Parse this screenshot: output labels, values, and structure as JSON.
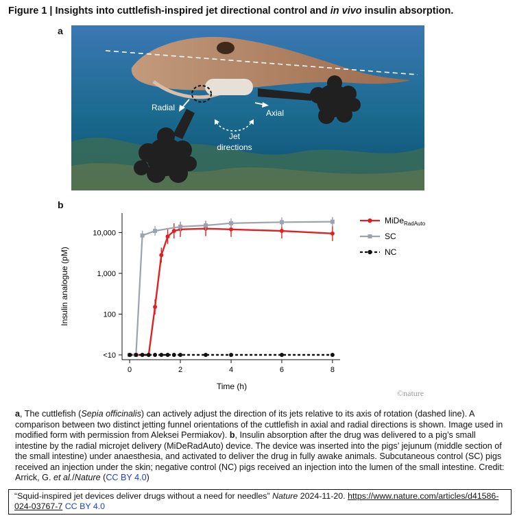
{
  "figure": {
    "title_prefix": "Figure 1 | Insights into cuttlefish-inspired jet directional control and ",
    "title_italic": "in vivo",
    "title_suffix": " insulin absorption."
  },
  "panel_a": {
    "letter": "a",
    "labels": {
      "radial": "Radial",
      "axial": "Axial",
      "jet_line1": "Jet",
      "jet_line2": "directions"
    },
    "colors": {
      "water_top": "#3c78b4",
      "water_bottom": "#0d4f73",
      "cuttlefish": "#b08468",
      "jet_cloud": "#202020"
    }
  },
  "panel_b": {
    "letter": "b",
    "watermark": "©nature"
  },
  "chart_data": {
    "type": "line",
    "xlabel": "Time (h)",
    "ylabel": "Insulin analogue (pM)",
    "x_ticks": [
      0,
      2,
      4,
      6,
      8
    ],
    "y_scale": "log",
    "y_ticks": [
      "<10",
      "100",
      "1,000",
      "10,000"
    ],
    "xlim": [
      -0.3,
      8.3
    ],
    "series": [
      {
        "name": "MiDe",
        "name_subscript": "RadAuto",
        "color": "#e02020",
        "marker": "filled-circle",
        "x": [
          0,
          0.25,
          0.5,
          0.75,
          1,
          1.25,
          1.5,
          1.75,
          2,
          3,
          4,
          6,
          8
        ],
        "y": [
          10,
          10,
          10,
          10,
          150,
          2800,
          8000,
          11000,
          12000,
          12500,
          12000,
          11000,
          9500
        ]
      },
      {
        "name": "SC",
        "color": "#9da3ad",
        "marker": "square",
        "x": [
          0,
          0.25,
          0.5,
          1,
          2,
          3,
          4,
          6,
          8
        ],
        "y": [
          10,
          10,
          8500,
          11000,
          14000,
          15000,
          17000,
          18000,
          18500
        ]
      },
      {
        "name": "NC",
        "color": "#111111",
        "marker": "filled-circle",
        "dashed": true,
        "x": [
          0,
          0.25,
          0.5,
          0.75,
          1,
          1.25,
          1.5,
          1.75,
          2,
          3,
          4,
          6,
          8
        ],
        "y": [
          10,
          10,
          10,
          10,
          10,
          10,
          10,
          10,
          10,
          10,
          10,
          10,
          10
        ]
      }
    ]
  },
  "caption": {
    "a_label": "a",
    "a1": ", The cuttlefish (",
    "a_species": "Sepia officinalis",
    "a2": ") can actively adjust the direction of its jets relative to its axis of rotation (dashed line). A comparison between two distinct jetting funnel orientations of the cuttlefish in axial and radial directions is shown. Image used in modified form with permission from Aleksei Permiakov). ",
    "b_label": "b",
    "b1": ", Insulin absorption after the drug was delivered to a pig’s small intestine by the radial microjet delivery (MiDeRadAuto) device. The device was inserted into the pigs’ jejunum (middle section of the small intestine) under anaesthesia, and activated to deliver the drug in fully awake animals. Subcutaneous control (SC) pigs received an injection under the skin; negative control (NC) pigs received an injection into the lumen of the small intestine. Credit: Arrick, G. ",
    "et_al": "et al.",
    "b2": "/",
    "journal": "Nature",
    "b3": " (",
    "license": "CC BY 4.0",
    "b4": ")"
  },
  "citation": {
    "text1": "“Squid-inspired jet devices deliver drugs without a need for needles” ",
    "journal": "Nature",
    "text2": " 2024-11-20. ",
    "url": "https://www.nature.com/articles/d41586-024-03767-7",
    "license": "CC BY 4.0"
  }
}
